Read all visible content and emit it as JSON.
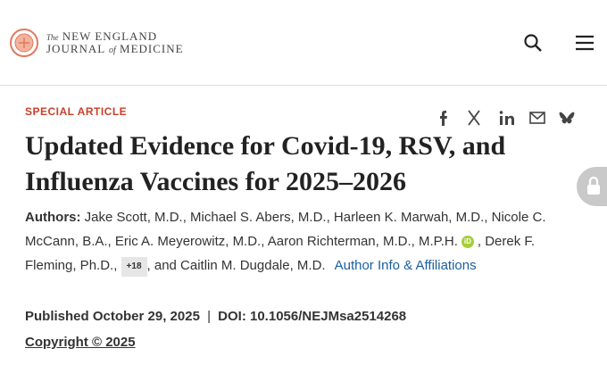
{
  "header": {
    "logo": {
      "prefix": "The",
      "line1": "NEW ENGLAND",
      "line2a": "JOURNAL",
      "of": "of",
      "line2b": "MEDICINE"
    }
  },
  "article": {
    "section": "SPECIAL ARTICLE",
    "title": "Updated Evidence for Covid-19, RSV, and Influenza Vaccines for 2025–2026",
    "authors_label": "Authors:",
    "authors_part1": "Jake Scott, M.D., Michael S. Abers, M.D., Harleen K. Marwah, M.D., Nicole C. McCann, B.A., Eric A. Meyerowitz, M.D., Aaron Richterman, M.D., M.P.H.",
    "orcid": "iD",
    "authors_part2": ", Derek F. Fleming, Ph.D.,",
    "more_authors": "+18",
    "authors_part3": ", and Caitlin M. Dugdale, M.D.",
    "author_info_link": "Author Info & Affiliations",
    "published": "Published October 29, 2025",
    "separator": "|",
    "doi": "DOI: 10.1056/NEJMsa2514268",
    "copyright": "Copyright © 2025"
  }
}
